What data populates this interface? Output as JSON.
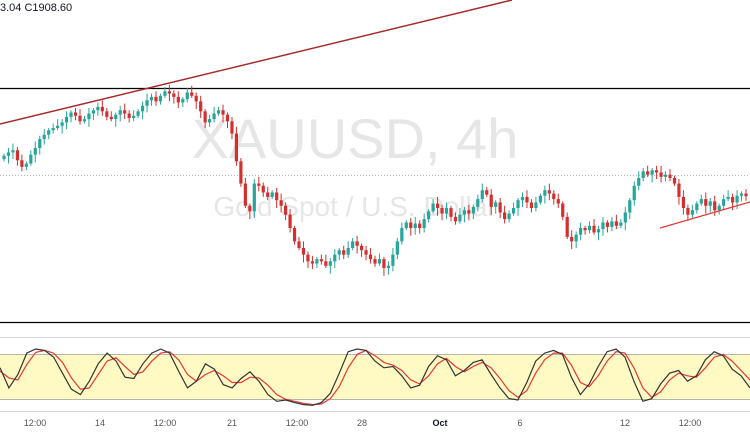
{
  "header": {
    "ohlc_text": "3.04  C1908.60"
  },
  "watermark": {
    "symbol": "XAUUSD, 4h",
    "description": "Gold Spot / U.S. Dollar"
  },
  "colors": {
    "up": "#26a69a",
    "down": "#d32f2f",
    "trendline": "#a52a2a",
    "support": "#e53935",
    "band": "#fff9c4",
    "stoch_k": "#333333",
    "stoch_d": "#e53935"
  },
  "x_axis": {
    "ticks": [
      "12:00",
      "14",
      "12:00",
      "21",
      "12:00",
      "28",
      "Oct",
      "6",
      "12",
      "12:00"
    ]
  },
  "chart_data": [
    {
      "type": "candlestick",
      "symbol": "XAUUSD",
      "timeframe": "4h",
      "x_ticks": [
        "12:00",
        "14",
        "12:00",
        "21",
        "12:00",
        "28",
        "Oct",
        "6",
        "12",
        "12:00"
      ],
      "close": [
        1945,
        1948,
        1950,
        1941,
        1935,
        1938,
        1946,
        1952,
        1960,
        1964,
        1968,
        1970,
        1972,
        1975,
        1980,
        1984,
        1981,
        1976,
        1978,
        1983,
        1986,
        1989,
        1985,
        1980,
        1978,
        1982,
        1986,
        1983,
        1979,
        1981,
        1985,
        1990,
        1995,
        1998,
        1994,
        1999,
        2003,
        2001,
        1998,
        1993,
        1996,
        2002,
        1999,
        1994,
        1985,
        1975,
        1978,
        1983,
        1986,
        1982,
        1976,
        1965,
        1940,
        1920,
        1900,
        1895,
        1920,
        1918,
        1912,
        1908,
        1912,
        1905,
        1900,
        1892,
        1880,
        1868,
        1862,
        1856,
        1850,
        1848,
        1852,
        1850,
        1846,
        1850,
        1856,
        1860,
        1856,
        1862,
        1868,
        1864,
        1860,
        1856,
        1852,
        1848,
        1852,
        1844,
        1846,
        1856,
        1868,
        1880,
        1885,
        1880,
        1884,
        1880,
        1888,
        1895,
        1902,
        1898,
        1893,
        1898,
        1890,
        1886,
        1892,
        1896,
        1893,
        1899,
        1906,
        1914,
        1910,
        1899,
        1903,
        1894,
        1888,
        1893,
        1898,
        1905,
        1908,
        1903,
        1898,
        1903,
        1909,
        1914,
        1911,
        1906,
        1902,
        1890,
        1872,
        1868,
        1874,
        1880,
        1878,
        1882,
        1876,
        1879,
        1885,
        1881,
        1886,
        1882,
        1885,
        1894,
        1905,
        1918,
        1925,
        1931,
        1928,
        1932,
        1930,
        1926,
        1928,
        1925,
        1920,
        1908,
        1898,
        1892,
        1896,
        1902,
        1906,
        1900,
        1904,
        1896,
        1900,
        1906,
        1908,
        1903,
        1909,
        1911,
        1908.6
      ]
    },
    {
      "type": "line",
      "name": "Stochastic",
      "x_ticks": [
        "12:00",
        "14",
        "12:00",
        "21",
        "12:00",
        "28",
        "Oct",
        "6",
        "12",
        "12:00"
      ],
      "series": [
        {
          "values": [
            60,
            30,
            50,
            82,
            88,
            86,
            76,
            52,
            28,
            20,
            40,
            66,
            82,
            70,
            46,
            44,
            66,
            82,
            88,
            82,
            55,
            30,
            40,
            66,
            58,
            35,
            30,
            44,
            54,
            40,
            20,
            10,
            12,
            8,
            5,
            4,
            8,
            22,
            52,
            84,
            88,
            86,
            70,
            60,
            62,
            48,
            30,
            34,
            62,
            78,
            72,
            48,
            56,
            68,
            72,
            50,
            30,
            14,
            12,
            38,
            70,
            82,
            86,
            80,
            46,
            20,
            36,
            62,
            84,
            88,
            76,
            40,
            10,
            14,
            36,
            52,
            56,
            40,
            48,
            72,
            84,
            78,
            58,
            48,
            30
          ]
        },
        {
          "values": [
            55,
            45,
            42,
            65,
            83,
            86,
            82,
            68,
            45,
            28,
            30,
            50,
            70,
            75,
            62,
            50,
            54,
            70,
            82,
            84,
            72,
            50,
            40,
            50,
            56,
            48,
            38,
            38,
            46,
            45,
            34,
            20,
            13,
            10,
            7,
            5,
            6,
            14,
            32,
            60,
            80,
            86,
            78,
            68,
            64,
            56,
            42,
            36,
            48,
            66,
            74,
            62,
            54,
            62,
            68,
            60,
            44,
            26,
            16,
            26,
            52,
            72,
            82,
            82,
            64,
            38,
            32,
            48,
            70,
            84,
            82,
            60,
            30,
            16,
            24,
            42,
            52,
            48,
            46,
            60,
            76,
            80,
            70,
            56,
            42
          ]
        }
      ],
      "levels": [
        80,
        20
      ]
    }
  ]
}
